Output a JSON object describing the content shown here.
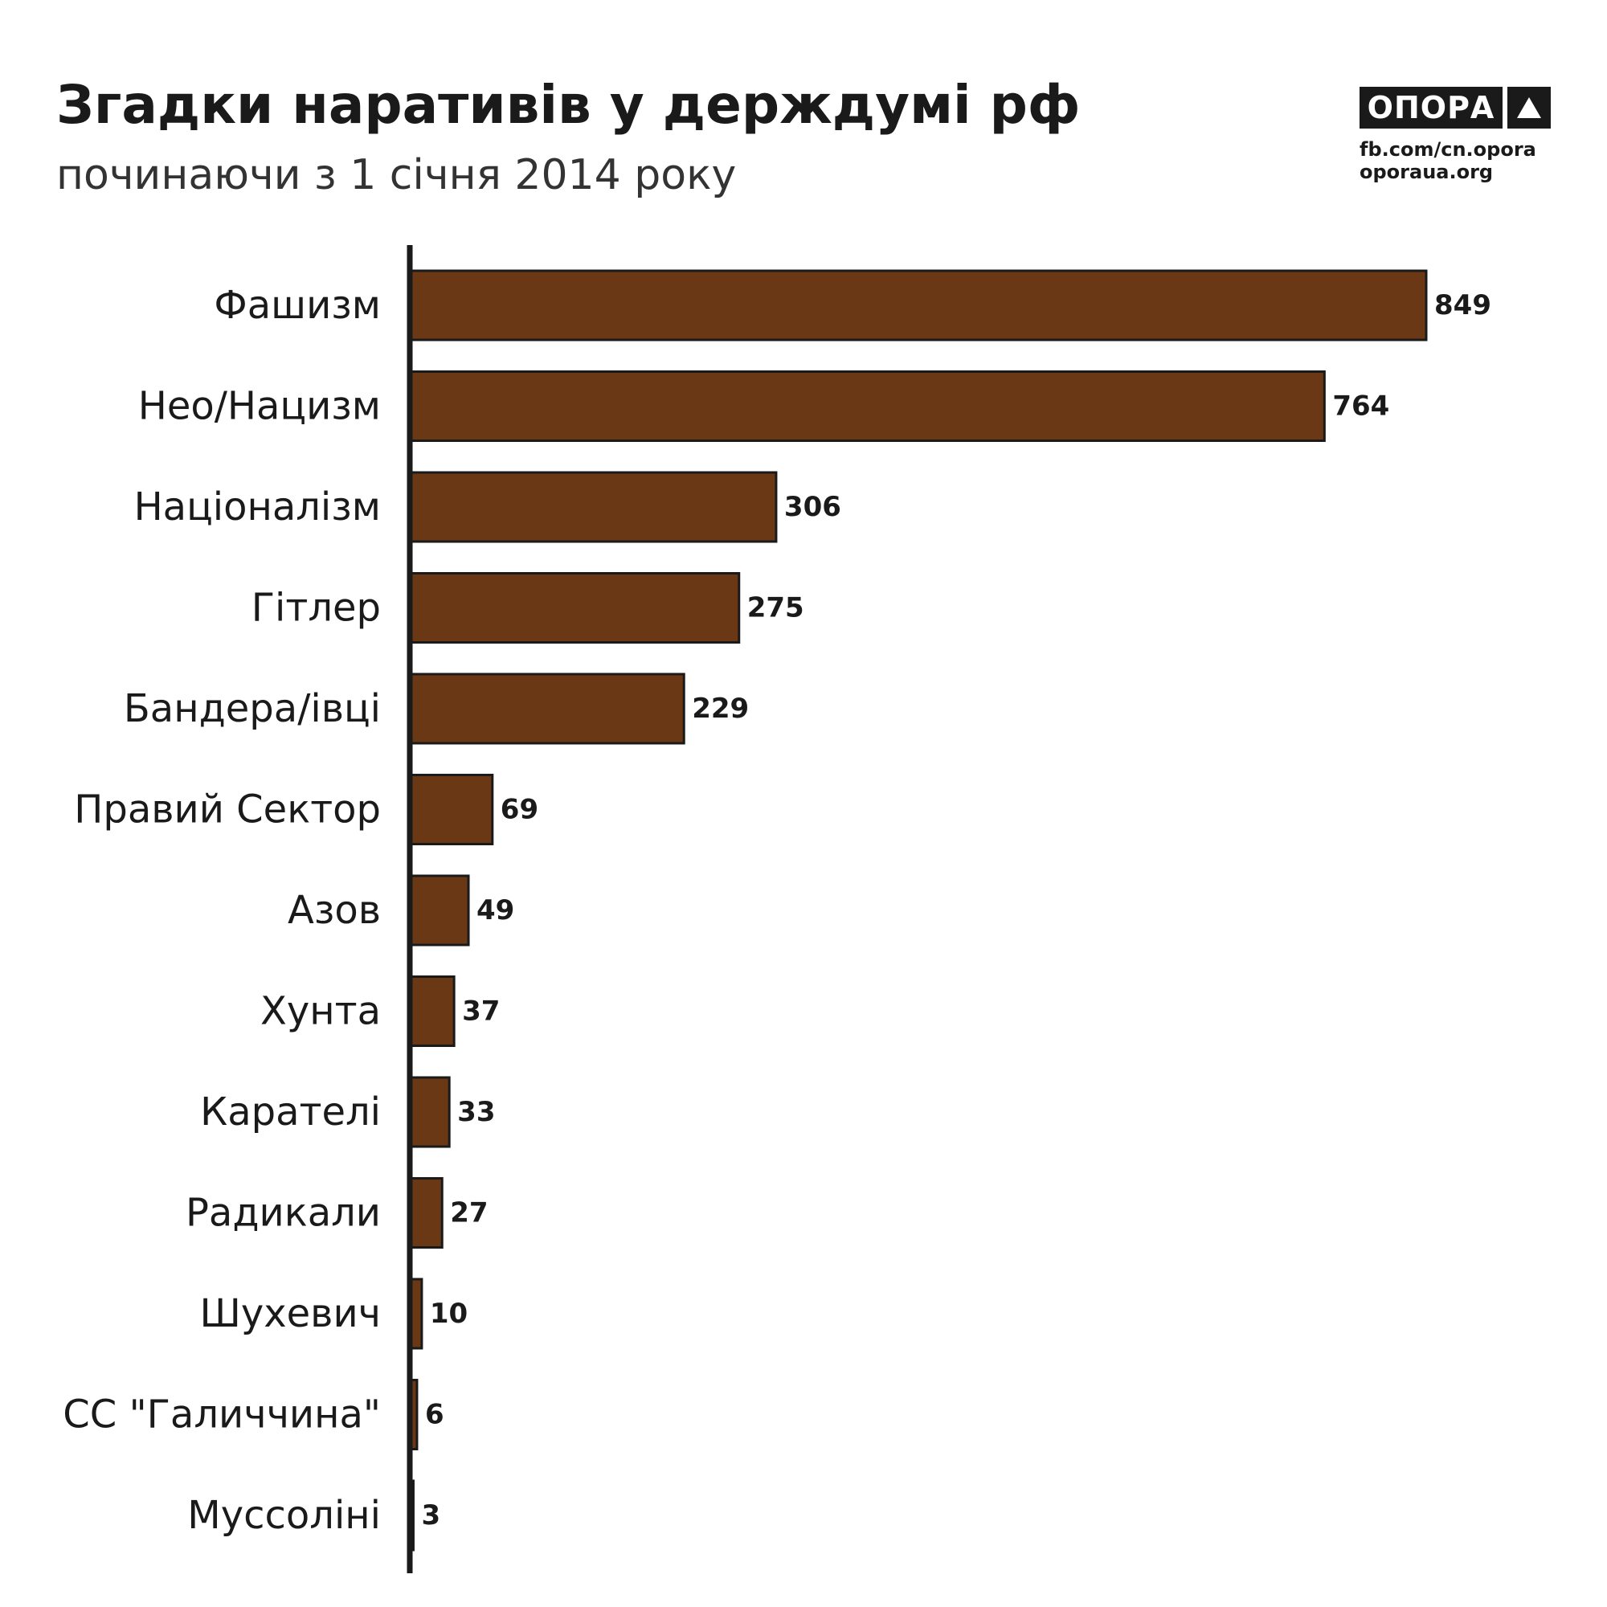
{
  "header": {
    "title": "Згадки наративів у держдумі рф",
    "subtitle": "починаючи з 1 січня 2014 року"
  },
  "branding": {
    "logo_text": "ОПОРА",
    "logo_icon": "triangle-up-icon",
    "link_facebook": "fb.com/cn.opora",
    "link_site": "oporaua.org"
  },
  "colors": {
    "bar_fill": "#6b3815",
    "bar_stroke": "#1a1a1a",
    "text": "#1a1a1a"
  },
  "chart_data": {
    "type": "bar",
    "orientation": "horizontal",
    "title": "Згадки наративів у держдумі рф",
    "subtitle": "починаючи з 1 січня 2014 року",
    "categories": [
      "Фашизм",
      "Нео/Нацизм",
      "Націоналізм",
      "Гітлер",
      "Бандера/івці",
      "Правий Сектор",
      "Азов",
      "Хунта",
      "Карателі",
      "Радикали",
      "Шухевич",
      "СС \"Галиччина\"",
      "Муссоліні"
    ],
    "values": [
      849,
      764,
      306,
      275,
      229,
      69,
      49,
      37,
      33,
      27,
      10,
      6,
      3
    ],
    "value_labels": [
      "849",
      "764",
      "306",
      "275",
      "229",
      "69",
      "49",
      "37",
      "33",
      "27",
      "10",
      "6",
      "3"
    ],
    "xlabel": "",
    "ylabel": "",
    "xlim": [
      0,
      849
    ],
    "grid": false,
    "legend": "none",
    "data_labels": true
  }
}
